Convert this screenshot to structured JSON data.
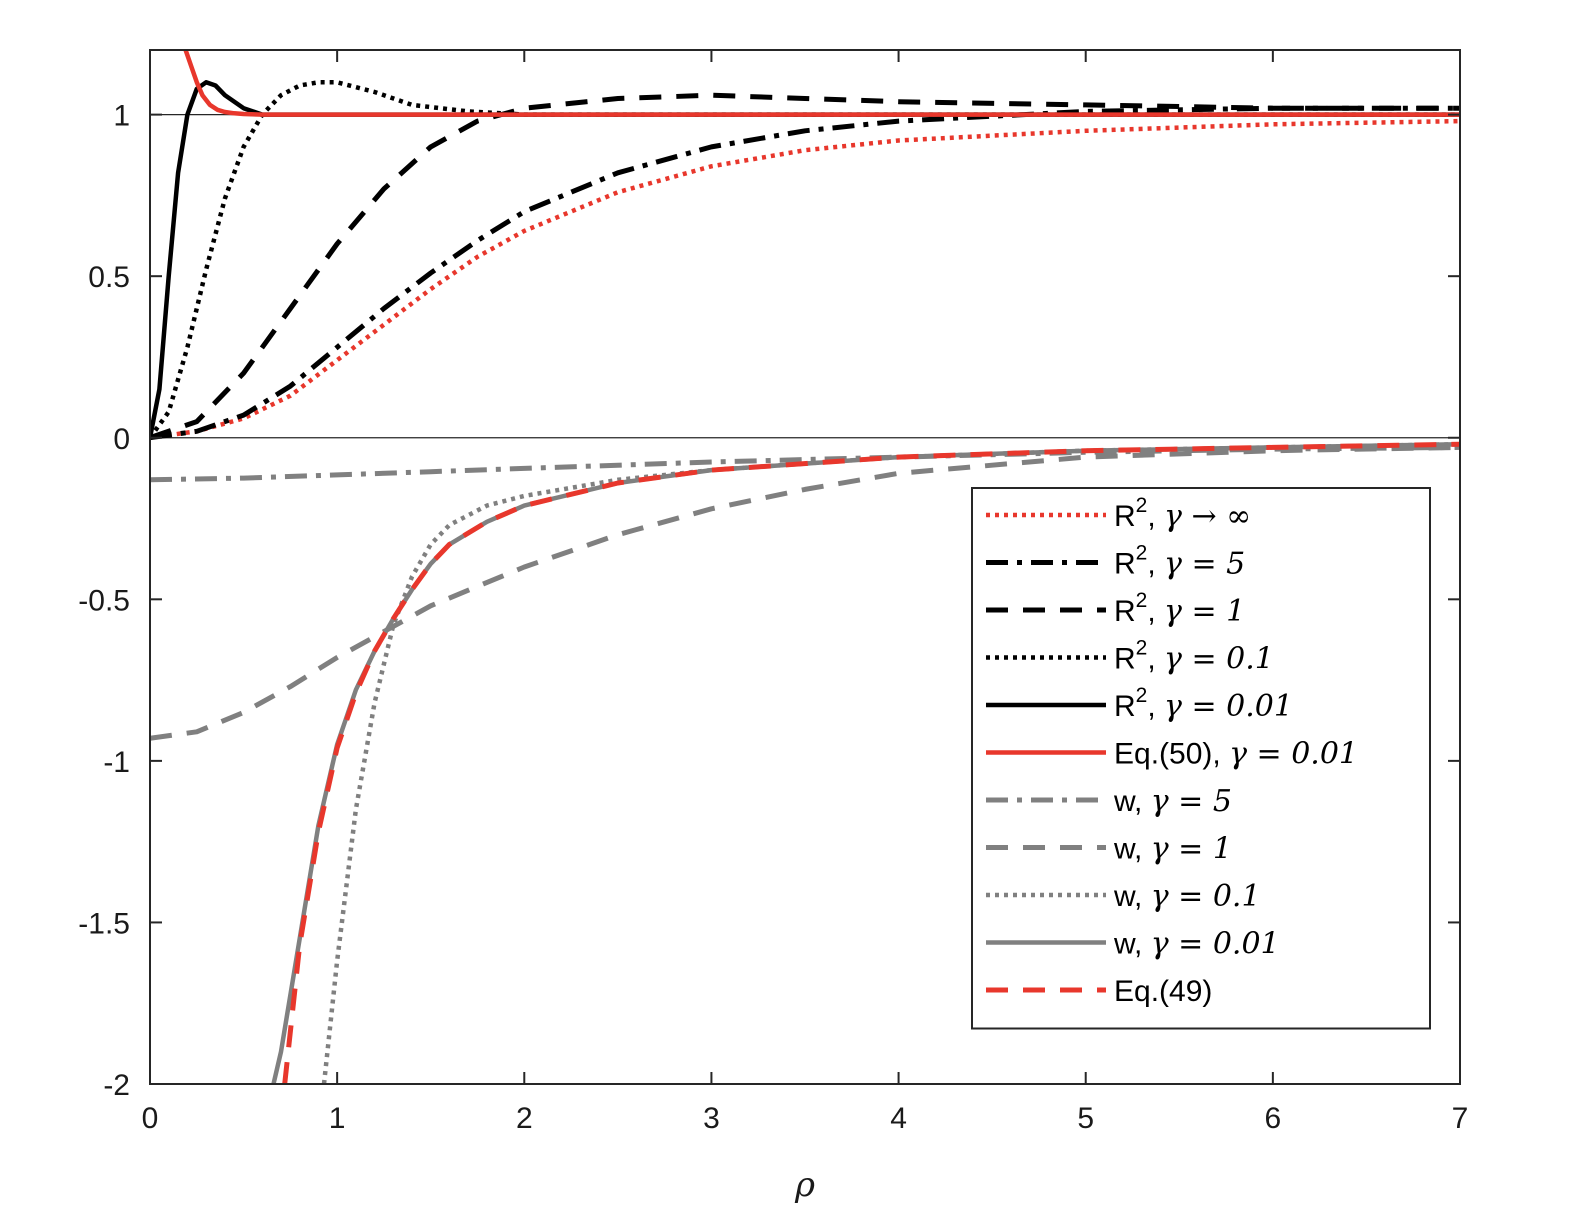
{
  "chart_data": {
    "type": "line",
    "xlabel": "ρ",
    "ylabel": "",
    "xlim": [
      0,
      7
    ],
    "ylim": [
      -2,
      1.2
    ],
    "xticks": [
      "0",
      "1",
      "2",
      "3",
      "4",
      "5",
      "6",
      "7"
    ],
    "yticks": [
      "1",
      "0.5",
      "0",
      "-0.5",
      "-1",
      "-1.5",
      "-2"
    ],
    "legend_position": "bottom-right",
    "series": [
      {
        "name": "R², γ → ∞",
        "label_main": "R",
        "label_sup": "2",
        "label_rest": ", ",
        "label_gamma": "γ → ∞",
        "color": "#e8372c",
        "dash": "dotted",
        "x": [
          0,
          0.25,
          0.5,
          0.75,
          1.0,
          1.25,
          1.5,
          1.75,
          2.0,
          2.5,
          3.0,
          3.5,
          4.0,
          5.0,
          6.0,
          7.0
        ],
        "y": [
          0,
          0.02,
          0.06,
          0.13,
          0.24,
          0.35,
          0.46,
          0.56,
          0.64,
          0.76,
          0.84,
          0.89,
          0.92,
          0.95,
          0.97,
          0.98
        ]
      },
      {
        "name": "R², γ = 5",
        "label_main": "R",
        "label_sup": "2",
        "label_rest": ", ",
        "label_gamma": "γ = 5",
        "color": "#000000",
        "dash": "dashdot",
        "x": [
          0,
          0.25,
          0.5,
          0.75,
          1.0,
          1.25,
          1.5,
          1.75,
          2.0,
          2.5,
          3.0,
          3.5,
          4.0,
          5.0,
          6.0,
          7.0
        ],
        "y": [
          0,
          0.02,
          0.07,
          0.16,
          0.28,
          0.4,
          0.51,
          0.61,
          0.7,
          0.82,
          0.9,
          0.95,
          0.98,
          1.01,
          1.02,
          1.02
        ]
      },
      {
        "name": "R², γ = 1",
        "label_main": "R",
        "label_sup": "2",
        "label_rest": ", ",
        "label_gamma": "γ = 1",
        "color": "#000000",
        "dash": "dashed",
        "x": [
          0,
          0.25,
          0.5,
          0.75,
          1.0,
          1.25,
          1.5,
          1.75,
          2.0,
          2.5,
          3.0,
          3.5,
          4.0,
          5.0,
          6.0,
          7.0
        ],
        "y": [
          0,
          0.05,
          0.2,
          0.4,
          0.6,
          0.77,
          0.9,
          0.98,
          1.02,
          1.05,
          1.06,
          1.05,
          1.04,
          1.03,
          1.02,
          1.02
        ]
      },
      {
        "name": "R², γ = 0.1",
        "label_main": "R",
        "label_sup": "2",
        "label_rest": ", ",
        "label_gamma": "γ = 0.1",
        "color": "#000000",
        "dash": "dotted",
        "x": [
          0,
          0.1,
          0.2,
          0.3,
          0.4,
          0.5,
          0.6,
          0.7,
          0.8,
          0.9,
          1.0,
          1.2,
          1.4,
          1.7,
          2.0,
          3.0,
          7.0
        ],
        "y": [
          0,
          0.08,
          0.28,
          0.52,
          0.74,
          0.9,
          1.0,
          1.06,
          1.09,
          1.1,
          1.1,
          1.07,
          1.03,
          1.01,
          1.0,
          1.0,
          1.0
        ]
      },
      {
        "name": "R², γ = 0.01",
        "label_main": "R",
        "label_sup": "2",
        "label_rest": ", ",
        "label_gamma": "γ = 0.01",
        "color": "#000000",
        "dash": "solid",
        "x": [
          0,
          0.05,
          0.1,
          0.15,
          0.2,
          0.25,
          0.3,
          0.35,
          0.4,
          0.5,
          0.6,
          0.8,
          1.0,
          7.0
        ],
        "y": [
          0,
          0.15,
          0.5,
          0.82,
          1.0,
          1.08,
          1.1,
          1.09,
          1.06,
          1.02,
          1.0,
          1.0,
          1.0,
          1.0
        ]
      },
      {
        "name": "Eq.(50),  γ = 0.01",
        "label_main": "Eq.(50),  ",
        "label_sup": "",
        "label_rest": "",
        "label_gamma": "γ = 0.01",
        "color": "#e8372c",
        "dash": "solid",
        "x": [
          0.19,
          0.22,
          0.25,
          0.28,
          0.32,
          0.36,
          0.4,
          0.45,
          0.5,
          0.6,
          0.8,
          1.0,
          7.0
        ],
        "y": [
          1.2,
          1.15,
          1.1,
          1.06,
          1.03,
          1.015,
          1.008,
          1.004,
          1.002,
          1.0,
          1.0,
          1.0,
          1.0
        ]
      },
      {
        "name": "w,  γ = 5",
        "label_main": "w,  ",
        "label_sup": "",
        "label_rest": "",
        "label_gamma": "γ = 5",
        "color": "#808080",
        "dash": "dashdot",
        "x": [
          0,
          0.5,
          1.0,
          1.5,
          2.0,
          2.5,
          3.0,
          4.0,
          5.0,
          6.0,
          7.0
        ],
        "y": [
          -0.13,
          -0.125,
          -0.115,
          -0.105,
          -0.095,
          -0.085,
          -0.075,
          -0.06,
          -0.045,
          -0.035,
          -0.03
        ]
      },
      {
        "name": "w,  γ = 1",
        "label_main": "w,  ",
        "label_sup": "",
        "label_rest": "",
        "label_gamma": "γ = 1",
        "color": "#808080",
        "dash": "dashed",
        "x": [
          0,
          0.25,
          0.5,
          0.75,
          1.0,
          1.25,
          1.5,
          1.75,
          2.0,
          2.5,
          3.0,
          3.5,
          4.0,
          5.0,
          6.0,
          7.0
        ],
        "y": [
          -0.93,
          -0.91,
          -0.85,
          -0.77,
          -0.68,
          -0.6,
          -0.52,
          -0.46,
          -0.4,
          -0.3,
          -0.22,
          -0.16,
          -0.11,
          -0.06,
          -0.04,
          -0.03
        ]
      },
      {
        "name": "w,  γ = 0.1",
        "label_main": "w,  ",
        "label_sup": "",
        "label_rest": "",
        "label_gamma": "γ = 0.1",
        "color": "#808080",
        "dash": "dotted",
        "x": [
          0.93,
          1.0,
          1.1,
          1.2,
          1.3,
          1.4,
          1.5,
          1.6,
          1.8,
          2.0,
          2.5,
          3.0,
          4.0,
          5.0,
          7.0
        ],
        "y": [
          -2.0,
          -1.62,
          -1.15,
          -0.82,
          -0.58,
          -0.43,
          -0.33,
          -0.27,
          -0.21,
          -0.18,
          -0.13,
          -0.1,
          -0.06,
          -0.04,
          -0.02
        ]
      },
      {
        "name": "w,  γ = 0.01",
        "label_main": "w,  ",
        "label_sup": "",
        "label_rest": "",
        "label_gamma": "γ = 0.01",
        "color": "#808080",
        "dash": "solid",
        "x": [
          0.66,
          0.7,
          0.8,
          0.9,
          1.0,
          1.1,
          1.2,
          1.3,
          1.4,
          1.5,
          1.6,
          1.8,
          2.0,
          2.5,
          3.0,
          4.0,
          5.0,
          6.0,
          7.0
        ],
        "y": [
          -2.0,
          -1.9,
          -1.55,
          -1.2,
          -0.95,
          -0.78,
          -0.66,
          -0.56,
          -0.47,
          -0.39,
          -0.33,
          -0.26,
          -0.21,
          -0.14,
          -0.1,
          -0.06,
          -0.04,
          -0.03,
          -0.02
        ]
      },
      {
        "name": "Eq.(49)",
        "label_main": "Eq.(49)",
        "label_sup": "",
        "label_rest": "",
        "label_gamma": "",
        "color": "#e8372c",
        "dash": "dashed",
        "x": [
          0.72,
          0.8,
          0.9,
          1.0,
          1.1,
          1.2,
          1.3,
          1.4,
          1.5,
          1.6,
          1.8,
          2.0,
          2.5,
          3.0,
          4.0,
          5.0,
          6.0,
          7.0
        ],
        "y": [
          -2.0,
          -1.57,
          -1.22,
          -0.96,
          -0.79,
          -0.66,
          -0.56,
          -0.47,
          -0.39,
          -0.33,
          -0.26,
          -0.21,
          -0.14,
          -0.1,
          -0.06,
          -0.04,
          -0.03,
          -0.02
        ]
      }
    ]
  }
}
